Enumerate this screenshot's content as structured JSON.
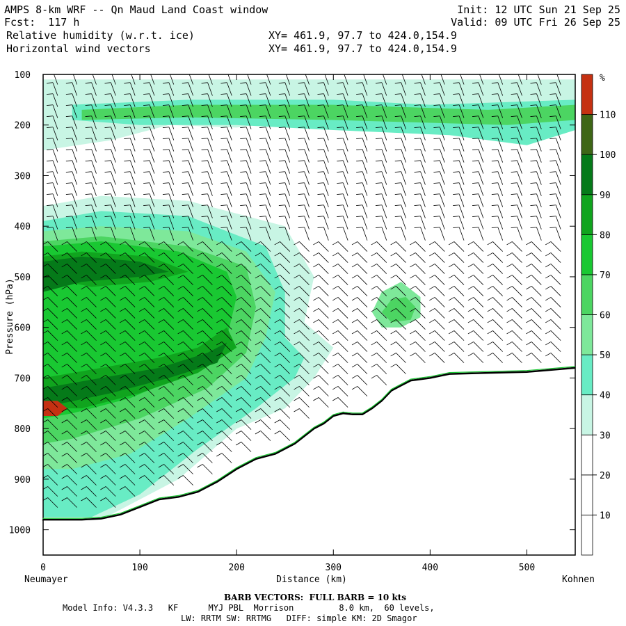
{
  "header": {
    "model_line": "AMPS 8-km WRF -- Qn Maud Land Coast window",
    "fcst_line": "Fcst:  117 h",
    "field1": "Relative humidity (w.r.t. ice)",
    "field2": "Horizontal wind vectors",
    "xy1": "XY= 461.9, 97.7 to 424.0,154.9",
    "xy2": "XY= 461.9, 97.7 to 424.0,154.9",
    "init": "Init: 12 UTC Sun 21 Sep 25",
    "valid": "Valid: 09 UTC Fri 26 Sep 25"
  },
  "footer": {
    "barb_note": "BARB VECTORS:  FULL BARB = 10 kts",
    "model_info": "Model Info: V4.3.3   KF      MYJ PBL  Morrison         8.0 km,  60 levels,",
    "physics": "LW: RRTM SW: RRTMG   DIFF: simple KM: 2D Smagor"
  },
  "chart_data": {
    "type": "heatmap",
    "title": "Relative humidity (w.r.t. ice) and horizontal wind vectors - vertical cross-section",
    "xlabel": "Distance (km)",
    "ylabel": "Pressure (hPa)",
    "xlim": [
      0,
      550
    ],
    "ylim": [
      1050,
      100
    ],
    "x_ticks": [
      0,
      100,
      200,
      300,
      400,
      500
    ],
    "y_ticks": [
      100,
      200,
      300,
      400,
      500,
      600,
      700,
      800,
      900,
      1000
    ],
    "x_start_label": "Neumayer",
    "x_end_label": "Kohnen",
    "colorbar": {
      "unit": "%",
      "levels": [
        10,
        20,
        30,
        40,
        50,
        60,
        70,
        80,
        90,
        100,
        110
      ],
      "colors": [
        "#ffffff",
        "#ffffff",
        "#ffffff",
        "#c8f5e4",
        "#68ecc4",
        "#7ee89a",
        "#4cd562",
        "#19c832",
        "#10a41e",
        "#057a19",
        "#3e6616",
        "#c53112"
      ]
    },
    "terrain_pressure": [
      [
        0,
        980
      ],
      [
        40,
        980
      ],
      [
        60,
        978
      ],
      [
        80,
        970
      ],
      [
        100,
        955
      ],
      [
        120,
        940
      ],
      [
        140,
        935
      ],
      [
        160,
        925
      ],
      [
        180,
        905
      ],
      [
        200,
        880
      ],
      [
        220,
        860
      ],
      [
        240,
        850
      ],
      [
        260,
        830
      ],
      [
        280,
        800
      ],
      [
        290,
        790
      ],
      [
        300,
        775
      ],
      [
        310,
        770
      ],
      [
        320,
        772
      ],
      [
        330,
        772
      ],
      [
        340,
        760
      ],
      [
        350,
        745
      ],
      [
        360,
        725
      ],
      [
        370,
        715
      ],
      [
        380,
        705
      ],
      [
        400,
        700
      ],
      [
        420,
        692
      ],
      [
        460,
        690
      ],
      [
        500,
        688
      ],
      [
        550,
        680
      ]
    ],
    "rh_regions": [
      {
        "level": 30,
        "points": [
          [
            0,
            250
          ],
          [
            70,
            230
          ],
          [
            130,
            200
          ],
          [
            200,
            205
          ],
          [
            300,
            180
          ],
          [
            420,
            190
          ],
          [
            550,
            200
          ],
          [
            550,
            110
          ],
          [
            0,
            110
          ]
        ]
      },
      {
        "level": 30,
        "points": [
          [
            0,
            980
          ],
          [
            0,
            360
          ],
          [
            60,
            340
          ],
          [
            150,
            350
          ],
          [
            250,
            400
          ],
          [
            280,
            500
          ],
          [
            270,
            590
          ],
          [
            300,
            640
          ],
          [
            280,
            700
          ],
          [
            250,
            760
          ],
          [
            200,
            800
          ],
          [
            140,
            900
          ],
          [
            60,
            980
          ]
        ]
      },
      {
        "level": 40,
        "points": [
          [
            0,
            975
          ],
          [
            0,
            390
          ],
          [
            60,
            370
          ],
          [
            150,
            380
          ],
          [
            230,
            440
          ],
          [
            250,
            530
          ],
          [
            250,
            620
          ],
          [
            270,
            660
          ],
          [
            260,
            700
          ],
          [
            220,
            760
          ],
          [
            160,
            840
          ],
          [
            100,
            930
          ],
          [
            50,
            975
          ]
        ]
      },
      {
        "level": 40,
        "points": [
          [
            30,
            160
          ],
          [
            150,
            150
          ],
          [
            300,
            150
          ],
          [
            400,
            160
          ],
          [
            550,
            150
          ],
          [
            550,
            210
          ],
          [
            500,
            240
          ],
          [
            420,
            220
          ],
          [
            300,
            210
          ],
          [
            200,
            200
          ],
          [
            100,
            200
          ],
          [
            30,
            190
          ]
        ]
      },
      {
        "level": 50,
        "points": [
          [
            0,
            700
          ],
          [
            0,
            410
          ],
          [
            60,
            400
          ],
          [
            150,
            410
          ],
          [
            210,
            450
          ],
          [
            240,
            530
          ],
          [
            230,
            620
          ],
          [
            210,
            700
          ],
          [
            150,
            780
          ],
          [
            90,
            850
          ],
          [
            30,
            880
          ],
          [
            0,
            880
          ]
        ]
      },
      {
        "level": 50,
        "points": [
          [
            340,
            570
          ],
          [
            350,
            530
          ],
          [
            370,
            510
          ],
          [
            390,
            540
          ],
          [
            390,
            580
          ],
          [
            370,
            600
          ],
          [
            350,
            600
          ]
        ]
      },
      {
        "level": 60,
        "points": [
          [
            0,
            560
          ],
          [
            0,
            430
          ],
          [
            60,
            420
          ],
          [
            150,
            440
          ],
          [
            210,
            480
          ],
          [
            220,
            560
          ],
          [
            210,
            650
          ],
          [
            170,
            720
          ],
          [
            100,
            780
          ],
          [
            30,
            820
          ],
          [
            0,
            830
          ]
        ]
      },
      {
        "level": 60,
        "points": [
          [
            40,
            170
          ],
          [
            150,
            160
          ],
          [
            300,
            160
          ],
          [
            460,
            170
          ],
          [
            550,
            160
          ],
          [
            550,
            190
          ],
          [
            480,
            200
          ],
          [
            300,
            190
          ],
          [
            150,
            185
          ],
          [
            40,
            190
          ]
        ]
      },
      {
        "level": 60,
        "points": [
          [
            350,
            570
          ],
          [
            360,
            545
          ],
          [
            375,
            540
          ],
          [
            385,
            560
          ],
          [
            380,
            585
          ],
          [
            360,
            590
          ]
        ]
      },
      {
        "level": 70,
        "points": [
          [
            0,
            540
          ],
          [
            0,
            440
          ],
          [
            60,
            430
          ],
          [
            140,
            450
          ],
          [
            190,
            490
          ],
          [
            200,
            540
          ],
          [
            190,
            620
          ],
          [
            150,
            690
          ],
          [
            90,
            740
          ],
          [
            30,
            770
          ],
          [
            0,
            780
          ]
        ]
      },
      {
        "level": 80,
        "points": [
          [
            0,
            500
          ],
          [
            0,
            460
          ],
          [
            40,
            450
          ],
          [
            110,
            460
          ],
          [
            150,
            490
          ],
          [
            110,
            510
          ],
          [
            50,
            520
          ]
        ]
      },
      {
        "level": 80,
        "points": [
          [
            0,
            760
          ],
          [
            0,
            700
          ],
          [
            60,
            680
          ],
          [
            120,
            660
          ],
          [
            160,
            640
          ],
          [
            190,
            600
          ],
          [
            200,
            640
          ],
          [
            160,
            690
          ],
          [
            100,
            730
          ],
          [
            40,
            760
          ]
        ]
      },
      {
        "level": 90,
        "points": [
          [
            0,
            530
          ],
          [
            0,
            470
          ],
          [
            40,
            460
          ],
          [
            100,
            470
          ],
          [
            130,
            490
          ],
          [
            100,
            500
          ],
          [
            40,
            510
          ]
        ]
      },
      {
        "level": 90,
        "points": [
          [
            0,
            750
          ],
          [
            0,
            720
          ],
          [
            60,
            700
          ],
          [
            120,
            680
          ],
          [
            170,
            650
          ],
          [
            190,
            630
          ],
          [
            180,
            670
          ],
          [
            130,
            700
          ],
          [
            70,
            730
          ],
          [
            20,
            750
          ]
        ]
      },
      {
        "level": 110,
        "points": [
          [
            0,
            775
          ],
          [
            0,
            745
          ],
          [
            15,
            745
          ],
          [
            25,
            760
          ],
          [
            15,
            775
          ]
        ]
      }
    ],
    "wind_barbs": "vectors at every grid column, mostly full barbs (~10 kts) pointing north-westward aloft"
  }
}
